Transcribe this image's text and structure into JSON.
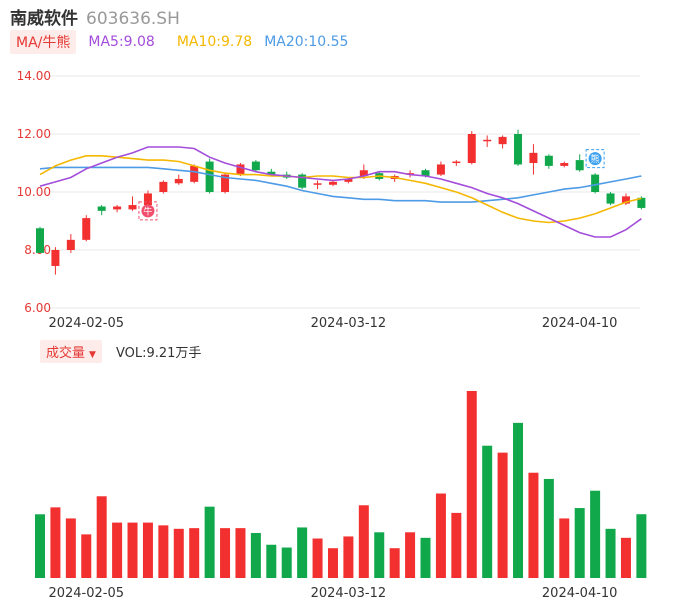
{
  "header": {
    "name": "南威软件",
    "code": "603636.SH"
  },
  "ma_legend": {
    "tag": "MA/牛熊",
    "ma5": "MA5:9.08",
    "ma10": "MA10:9.78",
    "ma20": "MA20:10.55"
  },
  "volume_legend": {
    "tag": "成交量",
    "caret": "▼",
    "value": "VOL:9.21万手"
  },
  "markers": {
    "bull": "牛",
    "bear": "熊"
  },
  "colors": {
    "up": "#f23030",
    "down": "#10a84b",
    "ma5": "#a34ddb",
    "ma10": "#f5b800",
    "ma20": "#4d9be6",
    "grid": "#e8e8e8",
    "axis_text": "#e53935",
    "date_text": "#333333"
  },
  "chart_data": [
    {
      "type": "candlestick",
      "y_ticks": [
        "14.00",
        "12.00",
        "10.00",
        "8.00",
        "6.00"
      ],
      "ylim": [
        6,
        14
      ],
      "x_ticks": [
        {
          "index": 3,
          "label": "2024-02-05"
        },
        {
          "index": 20,
          "label": "2024-03-12"
        },
        {
          "index": 35,
          "label": "2024-04-10"
        }
      ],
      "candles": [
        {
          "o": 8.75,
          "h": 8.8,
          "c": 7.9,
          "l": 7.9
        },
        {
          "o": 7.45,
          "h": 8.1,
          "c": 8.0,
          "l": 7.15
        },
        {
          "o": 8.0,
          "h": 8.55,
          "c": 8.35,
          "l": 7.9
        },
        {
          "o": 8.35,
          "h": 9.2,
          "c": 9.1,
          "l": 8.3
        },
        {
          "o": 9.5,
          "h": 9.55,
          "c": 9.35,
          "l": 9.2
        },
        {
          "o": 9.4,
          "h": 9.55,
          "c": 9.5,
          "l": 9.3
        },
        {
          "o": 9.4,
          "h": 9.85,
          "c": 9.55,
          "l": 9.35
        },
        {
          "o": 9.55,
          "h": 10.05,
          "c": 9.95,
          "l": 9.45
        },
        {
          "o": 10.0,
          "h": 10.4,
          "c": 10.35,
          "l": 9.95
        },
        {
          "o": 10.3,
          "h": 10.6,
          "c": 10.45,
          "l": 10.25
        },
        {
          "o": 10.35,
          "h": 10.95,
          "c": 10.9,
          "l": 10.3
        },
        {
          "o": 11.05,
          "h": 11.15,
          "c": 10.0,
          "l": 9.95
        },
        {
          "o": 10.0,
          "h": 10.65,
          "c": 10.6,
          "l": 9.95
        },
        {
          "o": 10.6,
          "h": 11.0,
          "c": 10.95,
          "l": 10.55
        },
        {
          "o": 11.05,
          "h": 11.1,
          "c": 10.75,
          "l": 10.7
        },
        {
          "o": 10.7,
          "h": 10.8,
          "c": 10.6,
          "l": 10.55
        },
        {
          "o": 10.6,
          "h": 10.7,
          "c": 10.5,
          "l": 10.45
        },
        {
          "o": 10.6,
          "h": 10.65,
          "c": 10.15,
          "l": 10.1
        },
        {
          "o": 10.25,
          "h": 10.4,
          "c": 10.3,
          "l": 10.1
        },
        {
          "o": 10.25,
          "h": 10.4,
          "c": 10.35,
          "l": 10.2
        },
        {
          "o": 10.35,
          "h": 10.5,
          "c": 10.45,
          "l": 10.3
        },
        {
          "o": 10.55,
          "h": 10.95,
          "c": 10.75,
          "l": 10.45
        },
        {
          "o": 10.65,
          "h": 10.7,
          "c": 10.45,
          "l": 10.4
        },
        {
          "o": 10.45,
          "h": 10.6,
          "c": 10.55,
          "l": 10.35
        },
        {
          "o": 10.6,
          "h": 10.75,
          "c": 10.65,
          "l": 10.5
        },
        {
          "o": 10.75,
          "h": 10.8,
          "c": 10.55,
          "l": 10.5
        },
        {
          "o": 10.6,
          "h": 11.05,
          "c": 10.95,
          "l": 10.55
        },
        {
          "o": 11.0,
          "h": 11.1,
          "c": 11.05,
          "l": 10.9
        },
        {
          "o": 11.0,
          "h": 12.1,
          "c": 12.0,
          "l": 10.95
        },
        {
          "o": 11.75,
          "h": 11.95,
          "c": 11.8,
          "l": 11.55
        },
        {
          "o": 11.65,
          "h": 11.95,
          "c": 11.9,
          "l": 11.5
        },
        {
          "o": 12.0,
          "h": 12.15,
          "c": 10.95,
          "l": 10.9
        },
        {
          "o": 11.0,
          "h": 11.65,
          "c": 11.35,
          "l": 10.6
        },
        {
          "o": 11.25,
          "h": 11.3,
          "c": 10.9,
          "l": 10.8
        },
        {
          "o": 10.9,
          "h": 11.05,
          "c": 11.0,
          "l": 10.85
        },
        {
          "o": 11.1,
          "h": 11.3,
          "c": 10.75,
          "l": 10.7
        },
        {
          "o": 10.6,
          "h": 10.65,
          "c": 10.0,
          "l": 9.95
        },
        {
          "o": 9.95,
          "h": 10.0,
          "c": 9.6,
          "l": 9.55
        },
        {
          "o": 9.6,
          "h": 9.95,
          "c": 9.85,
          "l": 9.55
        },
        {
          "o": 9.8,
          "h": 9.85,
          "c": 9.45,
          "l": 9.4
        }
      ],
      "ma5": [
        10.2,
        10.35,
        10.5,
        10.8,
        11.0,
        11.2,
        11.35,
        11.55,
        11.55,
        11.55,
        11.5,
        11.2,
        11.0,
        10.85,
        10.7,
        10.6,
        10.55,
        10.5,
        10.45,
        10.4,
        10.45,
        10.55,
        10.7,
        10.7,
        10.6,
        10.55,
        10.45,
        10.3,
        10.15,
        9.95,
        9.8,
        9.6,
        9.35,
        9.1,
        8.85,
        8.6,
        8.45,
        8.45,
        8.7,
        9.08
      ],
      "ma10": [
        10.6,
        10.9,
        11.1,
        11.25,
        11.25,
        11.2,
        11.15,
        11.1,
        11.1,
        11.05,
        10.9,
        10.75,
        10.65,
        10.6,
        10.6,
        10.55,
        10.55,
        10.5,
        10.55,
        10.55,
        10.5,
        10.5,
        10.55,
        10.5,
        10.4,
        10.3,
        10.15,
        10.0,
        9.8,
        9.55,
        9.3,
        9.1,
        9.0,
        8.95,
        9.0,
        9.1,
        9.25,
        9.45,
        9.65,
        9.78
      ],
      "ma20": [
        10.8,
        10.85,
        10.85,
        10.85,
        10.85,
        10.85,
        10.85,
        10.85,
        10.8,
        10.75,
        10.7,
        10.6,
        10.5,
        10.45,
        10.4,
        10.3,
        10.2,
        10.05,
        9.95,
        9.85,
        9.8,
        9.75,
        9.75,
        9.7,
        9.7,
        9.7,
        9.65,
        9.65,
        9.65,
        9.7,
        9.75,
        9.8,
        9.9,
        10.0,
        10.1,
        10.15,
        10.25,
        10.35,
        10.45,
        10.55
      ],
      "markers": [
        {
          "index": 7,
          "label": "牛",
          "price": 9.35
        },
        {
          "index": 36,
          "label": "熊",
          "price": 11.15
        }
      ]
    },
    {
      "type": "bar",
      "name": "成交量",
      "x_ticks": [
        {
          "index": 3,
          "label": "2024-02-05"
        },
        {
          "index": 20,
          "label": "2024-03-12"
        },
        {
          "index": 35,
          "label": "2024-04-10"
        }
      ],
      "volumes": [
        9.2,
        10.2,
        8.6,
        6.3,
        11.8,
        8.0,
        8.0,
        8.0,
        7.6,
        7.1,
        7.2,
        10.3,
        7.2,
        7.2,
        6.5,
        4.8,
        4.4,
        7.3,
        5.7,
        4.3,
        6.0,
        10.5,
        6.6,
        4.3,
        6.6,
        5.8,
        12.2,
        9.4,
        27.0,
        19.1,
        18.1,
        22.4,
        15.2,
        14.3,
        8.6,
        10.1,
        12.6,
        7.1,
        5.8,
        9.21
      ],
      "up": [
        false,
        true,
        true,
        true,
        true,
        true,
        true,
        true,
        true,
        true,
        true,
        false,
        true,
        true,
        false,
        false,
        false,
        false,
        true,
        true,
        true,
        true,
        false,
        true,
        true,
        false,
        true,
        true,
        true,
        false,
        true,
        false,
        true,
        false,
        true,
        false,
        false,
        false,
        true,
        false
      ]
    }
  ]
}
